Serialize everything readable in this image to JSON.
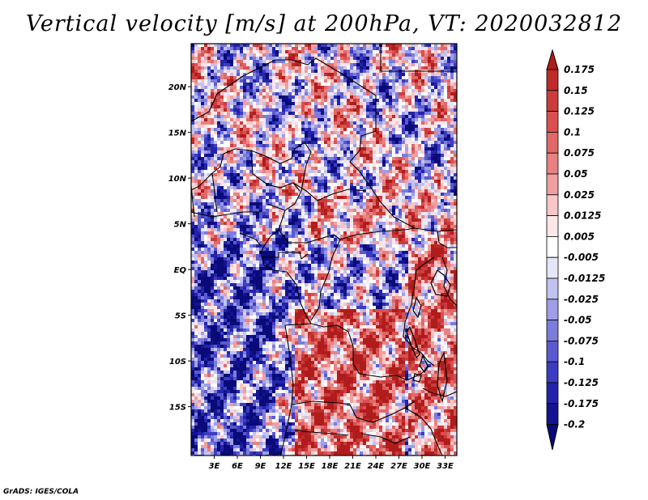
{
  "title": "Vertical velocity [m/s] at 200hPa, VT: 2020032812",
  "credit": "GrADS: IGES/COLA",
  "map": {
    "lat_labels": [
      "20N",
      "15N",
      "10N",
      "5N",
      "EQ",
      "5S",
      "10S",
      "15S"
    ],
    "lon_labels": [
      "3E",
      "6E",
      "9E",
      "12E",
      "15E",
      "18E",
      "21E",
      "24E",
      "27E",
      "30E",
      "33E"
    ]
  },
  "colorbar": {
    "labels": [
      "0.175",
      "0.15",
      "0.125",
      "0.1",
      "0.075",
      "0.05",
      "0.025",
      "0.0125",
      "0.005",
      "-0.005",
      "-0.0125",
      "-0.025",
      "-0.05",
      "-0.075",
      "-0.1",
      "-0.125",
      "-0.175",
      "-0.2"
    ],
    "colors": [
      "#b01c1c",
      "#bf2a2a",
      "#cc3c3c",
      "#d85050",
      "#e06868",
      "#e88282",
      "#f09e9e",
      "#f8c6c6",
      "#fce6e6",
      "#ffffff",
      "#e6e6fa",
      "#c2c2f0",
      "#9e9ee6",
      "#7c7cdc",
      "#5a5ad0",
      "#3c3cc0",
      "#2424aa",
      "#141490",
      "#0a0a78"
    ]
  }
}
